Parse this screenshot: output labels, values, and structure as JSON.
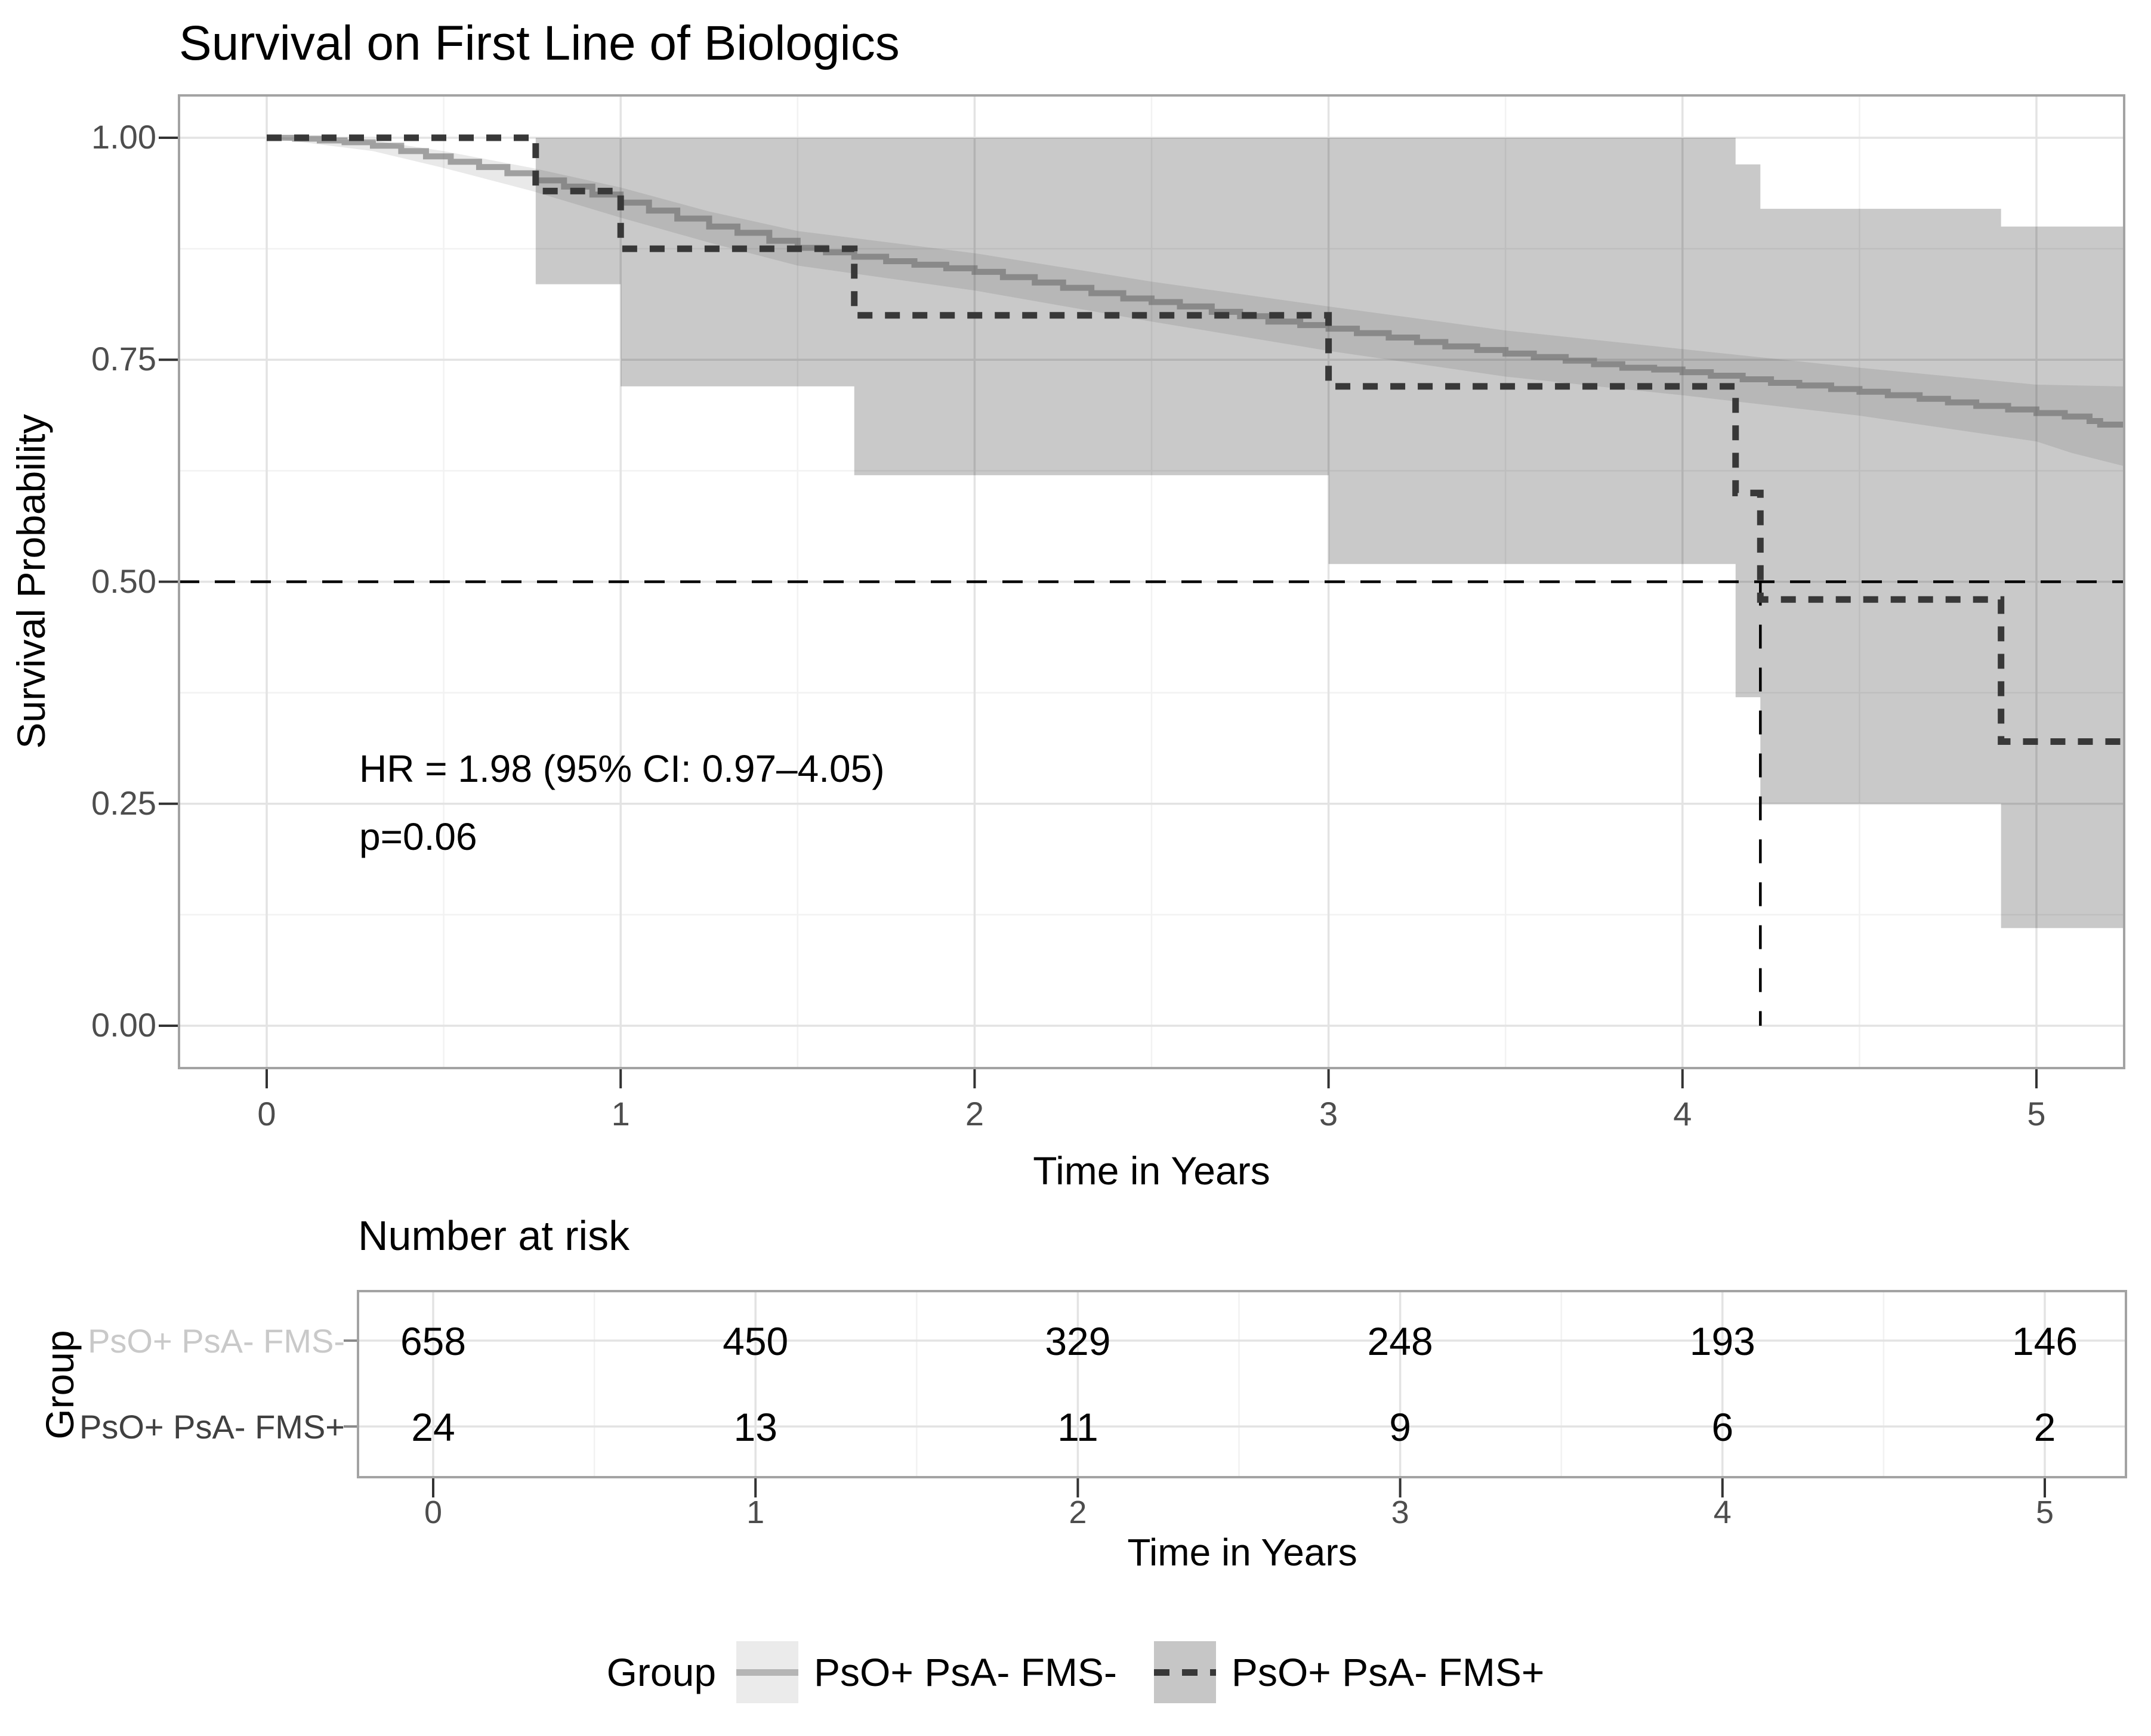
{
  "title": "Survival on First Line of Biologics",
  "colors": {
    "background": "#ffffff",
    "panel_border": "#a3a3a3",
    "grid_major": "#e3e3e3",
    "grid_minor": "#f2f2f2",
    "tick_mark": "#333333",
    "tick_label": "#4d4d4d",
    "text": "#000000",
    "fms_minus_line": "rgba(100,100,100,0.55)",
    "fms_minus_ribbon": "rgba(0,0,0,0.085)",
    "fms_plus_line": "#383838",
    "fms_plus_ribbon": "rgba(0,0,0,0.21)",
    "reference_line": "#000000",
    "row_label_muted": "#c9c9c9",
    "row_label_dark": "#404040",
    "legend_key1_bg": "#ebebeb",
    "legend_key2_bg": "#c6c6c6",
    "legend_key1_line": "#b5b5b5"
  },
  "main_plot": {
    "y_axis": {
      "title": "Survival Probability",
      "ticks": [
        {
          "v": 1.0,
          "label": "1.00"
        },
        {
          "v": 0.75,
          "label": "0.75"
        },
        {
          "v": 0.5,
          "label": "0.50"
        },
        {
          "v": 0.25,
          "label": "0.25"
        },
        {
          "v": 0.0,
          "label": "0.00"
        }
      ],
      "minor": [
        0.875,
        0.625,
        0.375,
        0.125
      ]
    },
    "x_axis": {
      "title": "Time in Years",
      "ticks": [
        {
          "v": 0,
          "label": "0"
        },
        {
          "v": 1,
          "label": "1"
        },
        {
          "v": 2,
          "label": "2"
        },
        {
          "v": 3,
          "label": "3"
        },
        {
          "v": 4,
          "label": "4"
        },
        {
          "v": 5,
          "label": "5"
        }
      ],
      "minor": [
        0.5,
        1.5,
        2.5,
        3.5,
        4.5
      ]
    },
    "annotation": {
      "line1": "HR = 1.98 (95% CI: 0.97–4.05)",
      "line2": "p=0.06"
    }
  },
  "chart_data": {
    "type": "line",
    "subtype": "kaplan-meier-survival",
    "title": "Survival on First Line of Biologics",
    "xlabel": "Time in Years",
    "ylabel": "Survival Probability",
    "xlim": [
      -0.25,
      5.25
    ],
    "ylim": [
      -0.048,
      1.048
    ],
    "grid": true,
    "legend_position": "bottom",
    "reference_lines": {
      "horizontal_at": 0.5,
      "vertical_at": 4.22
    },
    "series": [
      {
        "name": "PsO+ PsA- FMS-",
        "line_style": "solid",
        "points": [
          [
            0.0,
            1.0
          ],
          [
            0.08,
            0.999
          ],
          [
            0.15,
            0.997
          ],
          [
            0.22,
            0.995
          ],
          [
            0.3,
            0.991
          ],
          [
            0.38,
            0.985
          ],
          [
            0.45,
            0.979
          ],
          [
            0.52,
            0.973
          ],
          [
            0.6,
            0.967
          ],
          [
            0.68,
            0.96
          ],
          [
            0.76,
            0.952
          ],
          [
            0.84,
            0.945
          ],
          [
            0.92,
            0.936
          ],
          [
            1.0,
            0.927
          ],
          [
            1.08,
            0.918
          ],
          [
            1.16,
            0.909
          ],
          [
            1.25,
            0.9
          ],
          [
            1.33,
            0.893
          ],
          [
            1.42,
            0.884
          ],
          [
            1.5,
            0.876
          ],
          [
            1.58,
            0.871
          ],
          [
            1.66,
            0.866
          ],
          [
            1.75,
            0.861
          ],
          [
            1.83,
            0.857
          ],
          [
            1.92,
            0.853
          ],
          [
            2.0,
            0.849
          ],
          [
            2.08,
            0.843
          ],
          [
            2.17,
            0.837
          ],
          [
            2.25,
            0.831
          ],
          [
            2.33,
            0.825
          ],
          [
            2.42,
            0.819
          ],
          [
            2.5,
            0.815
          ],
          [
            2.58,
            0.81
          ],
          [
            2.67,
            0.804
          ],
          [
            2.75,
            0.799
          ],
          [
            2.83,
            0.793
          ],
          [
            2.92,
            0.789
          ],
          [
            3.0,
            0.785
          ],
          [
            3.08,
            0.78
          ],
          [
            3.17,
            0.775
          ],
          [
            3.25,
            0.77
          ],
          [
            3.33,
            0.765
          ],
          [
            3.42,
            0.761
          ],
          [
            3.5,
            0.757
          ],
          [
            3.58,
            0.753
          ],
          [
            3.67,
            0.749
          ],
          [
            3.75,
            0.745
          ],
          [
            3.83,
            0.741
          ],
          [
            3.92,
            0.739
          ],
          [
            4.0,
            0.736
          ],
          [
            4.08,
            0.732
          ],
          [
            4.17,
            0.728
          ],
          [
            4.25,
            0.724
          ],
          [
            4.33,
            0.721
          ],
          [
            4.42,
            0.717
          ],
          [
            4.5,
            0.714
          ],
          [
            4.58,
            0.71
          ],
          [
            4.67,
            0.706
          ],
          [
            4.75,
            0.702
          ],
          [
            4.83,
            0.698
          ],
          [
            4.92,
            0.694
          ],
          [
            5.0,
            0.69
          ],
          [
            5.08,
            0.686
          ],
          [
            5.15,
            0.681
          ],
          [
            5.18,
            0.677
          ],
          [
            5.25,
            0.675
          ]
        ],
        "ci_upper": [
          [
            0.0,
            1.0
          ],
          [
            0.3,
            0.997
          ],
          [
            0.5,
            0.985
          ],
          [
            0.75,
            0.966
          ],
          [
            1.0,
            0.944
          ],
          [
            1.25,
            0.917
          ],
          [
            1.5,
            0.895
          ],
          [
            2.0,
            0.87
          ],
          [
            2.5,
            0.838
          ],
          [
            3.0,
            0.81
          ],
          [
            3.5,
            0.783
          ],
          [
            4.0,
            0.762
          ],
          [
            4.5,
            0.741
          ],
          [
            5.0,
            0.722
          ],
          [
            5.25,
            0.72
          ]
        ],
        "ci_lower": [
          [
            0.0,
            1.0
          ],
          [
            0.3,
            0.985
          ],
          [
            0.5,
            0.966
          ],
          [
            0.75,
            0.94
          ],
          [
            1.0,
            0.91
          ],
          [
            1.25,
            0.882
          ],
          [
            1.5,
            0.856
          ],
          [
            2.0,
            0.828
          ],
          [
            2.5,
            0.793
          ],
          [
            3.0,
            0.76
          ],
          [
            3.5,
            0.731
          ],
          [
            4.0,
            0.71
          ],
          [
            4.5,
            0.687
          ],
          [
            5.0,
            0.658
          ],
          [
            5.1,
            0.645
          ],
          [
            5.25,
            0.63
          ]
        ]
      },
      {
        "name": "PsO+ PsA- FMS+",
        "line_style": "dashed",
        "points": [
          [
            0.0,
            1.0
          ],
          [
            0.76,
            0.94
          ],
          [
            1.0,
            0.875
          ],
          [
            1.66,
            0.8
          ],
          [
            3.0,
            0.72
          ],
          [
            4.15,
            0.6
          ],
          [
            4.22,
            0.48
          ],
          [
            4.9,
            0.32
          ],
          [
            5.25,
            0.32
          ]
        ],
        "ci_upper": [
          [
            0.76,
            1.0
          ],
          [
            4.15,
            0.97
          ],
          [
            4.22,
            0.92
          ],
          [
            4.9,
            0.9
          ],
          [
            5.25,
            0.9
          ]
        ],
        "ci_lower": [
          [
            0.76,
            0.835
          ],
          [
            1.0,
            0.72
          ],
          [
            1.66,
            0.62
          ],
          [
            3.0,
            0.52
          ],
          [
            4.15,
            0.37
          ],
          [
            4.22,
            0.25
          ],
          [
            4.9,
            0.11
          ],
          [
            5.25,
            0.11
          ]
        ]
      }
    ]
  },
  "risk_table": {
    "title": "Number at risk",
    "y_label": "Group",
    "x_axis_title": "Time in Years",
    "ticks": [
      {
        "v": 0,
        "label": "0"
      },
      {
        "v": 1,
        "label": "1"
      },
      {
        "v": 2,
        "label": "2"
      },
      {
        "v": 3,
        "label": "3"
      },
      {
        "v": 4,
        "label": "4"
      },
      {
        "v": 5,
        "label": "5"
      }
    ],
    "rows": [
      {
        "label": "PsO+ PsA- FMS-",
        "muted": true,
        "values": [
          658,
          450,
          329,
          248,
          193,
          146
        ]
      },
      {
        "label": "PsO+ PsA- FMS+",
        "muted": false,
        "values": [
          24,
          13,
          11,
          9,
          6,
          2
        ]
      }
    ]
  },
  "legend": {
    "title": "Group",
    "items": [
      {
        "label": "PsO+ PsA- FMS-",
        "line_style": "solid"
      },
      {
        "label": "PsO+ PsA- FMS+",
        "line_style": "dashed"
      }
    ]
  }
}
